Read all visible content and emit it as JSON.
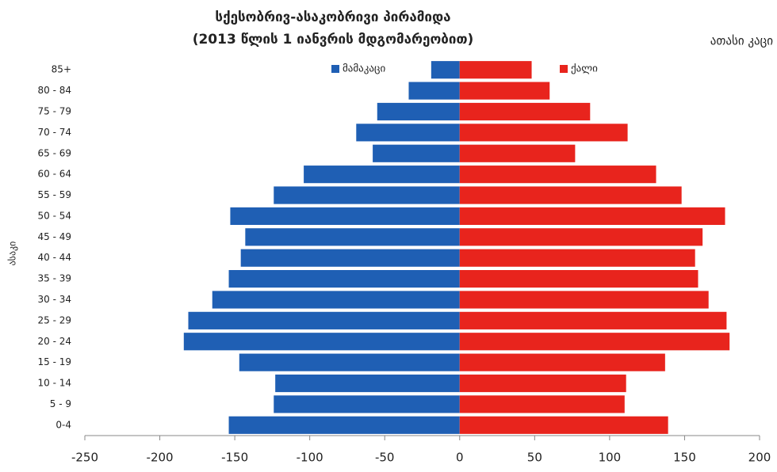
{
  "chart_data": {
    "type": "bar",
    "orientation": "horizontal",
    "title": [
      "სქესობრივ-ასაკობრივი პირამიდა",
      "(2013 წლის 1 იანვრის მდგომარეობით)"
    ],
    "unit_label": "ათასი კაცი",
    "ylabel": "ასაკი",
    "categories": [
      "0-4",
      "5 - 9",
      "10 - 14",
      "15 - 19",
      "20 - 24",
      "25 - 29",
      "30 - 34",
      "35 - 39",
      "40 - 44",
      "45 - 49",
      "50 - 54",
      "55 - 59",
      "60 - 64",
      "65 - 69",
      "70 - 74",
      "75 - 79",
      "80 - 84",
      "85+"
    ],
    "series": [
      {
        "name": "მამაკაცი",
        "color": "#1f5fb4",
        "values": [
          -154,
          -124,
          -123,
          -147,
          -184,
          -181,
          -165,
          -154,
          -146,
          -143,
          -153,
          -124,
          -104,
          -58,
          -69,
          -55,
          -34,
          -19
        ]
      },
      {
        "name": "ქალი",
        "color": "#e8241d",
        "values": [
          139,
          110,
          111,
          137,
          180,
          178,
          166,
          159,
          157,
          162,
          177,
          148,
          131,
          77,
          112,
          87,
          60,
          48
        ]
      }
    ],
    "xlim": [
      -250,
      200
    ],
    "xticks": [
      -250,
      -200,
      -150,
      -100,
      -50,
      0,
      50,
      100,
      150,
      200
    ],
    "legend": "top"
  }
}
